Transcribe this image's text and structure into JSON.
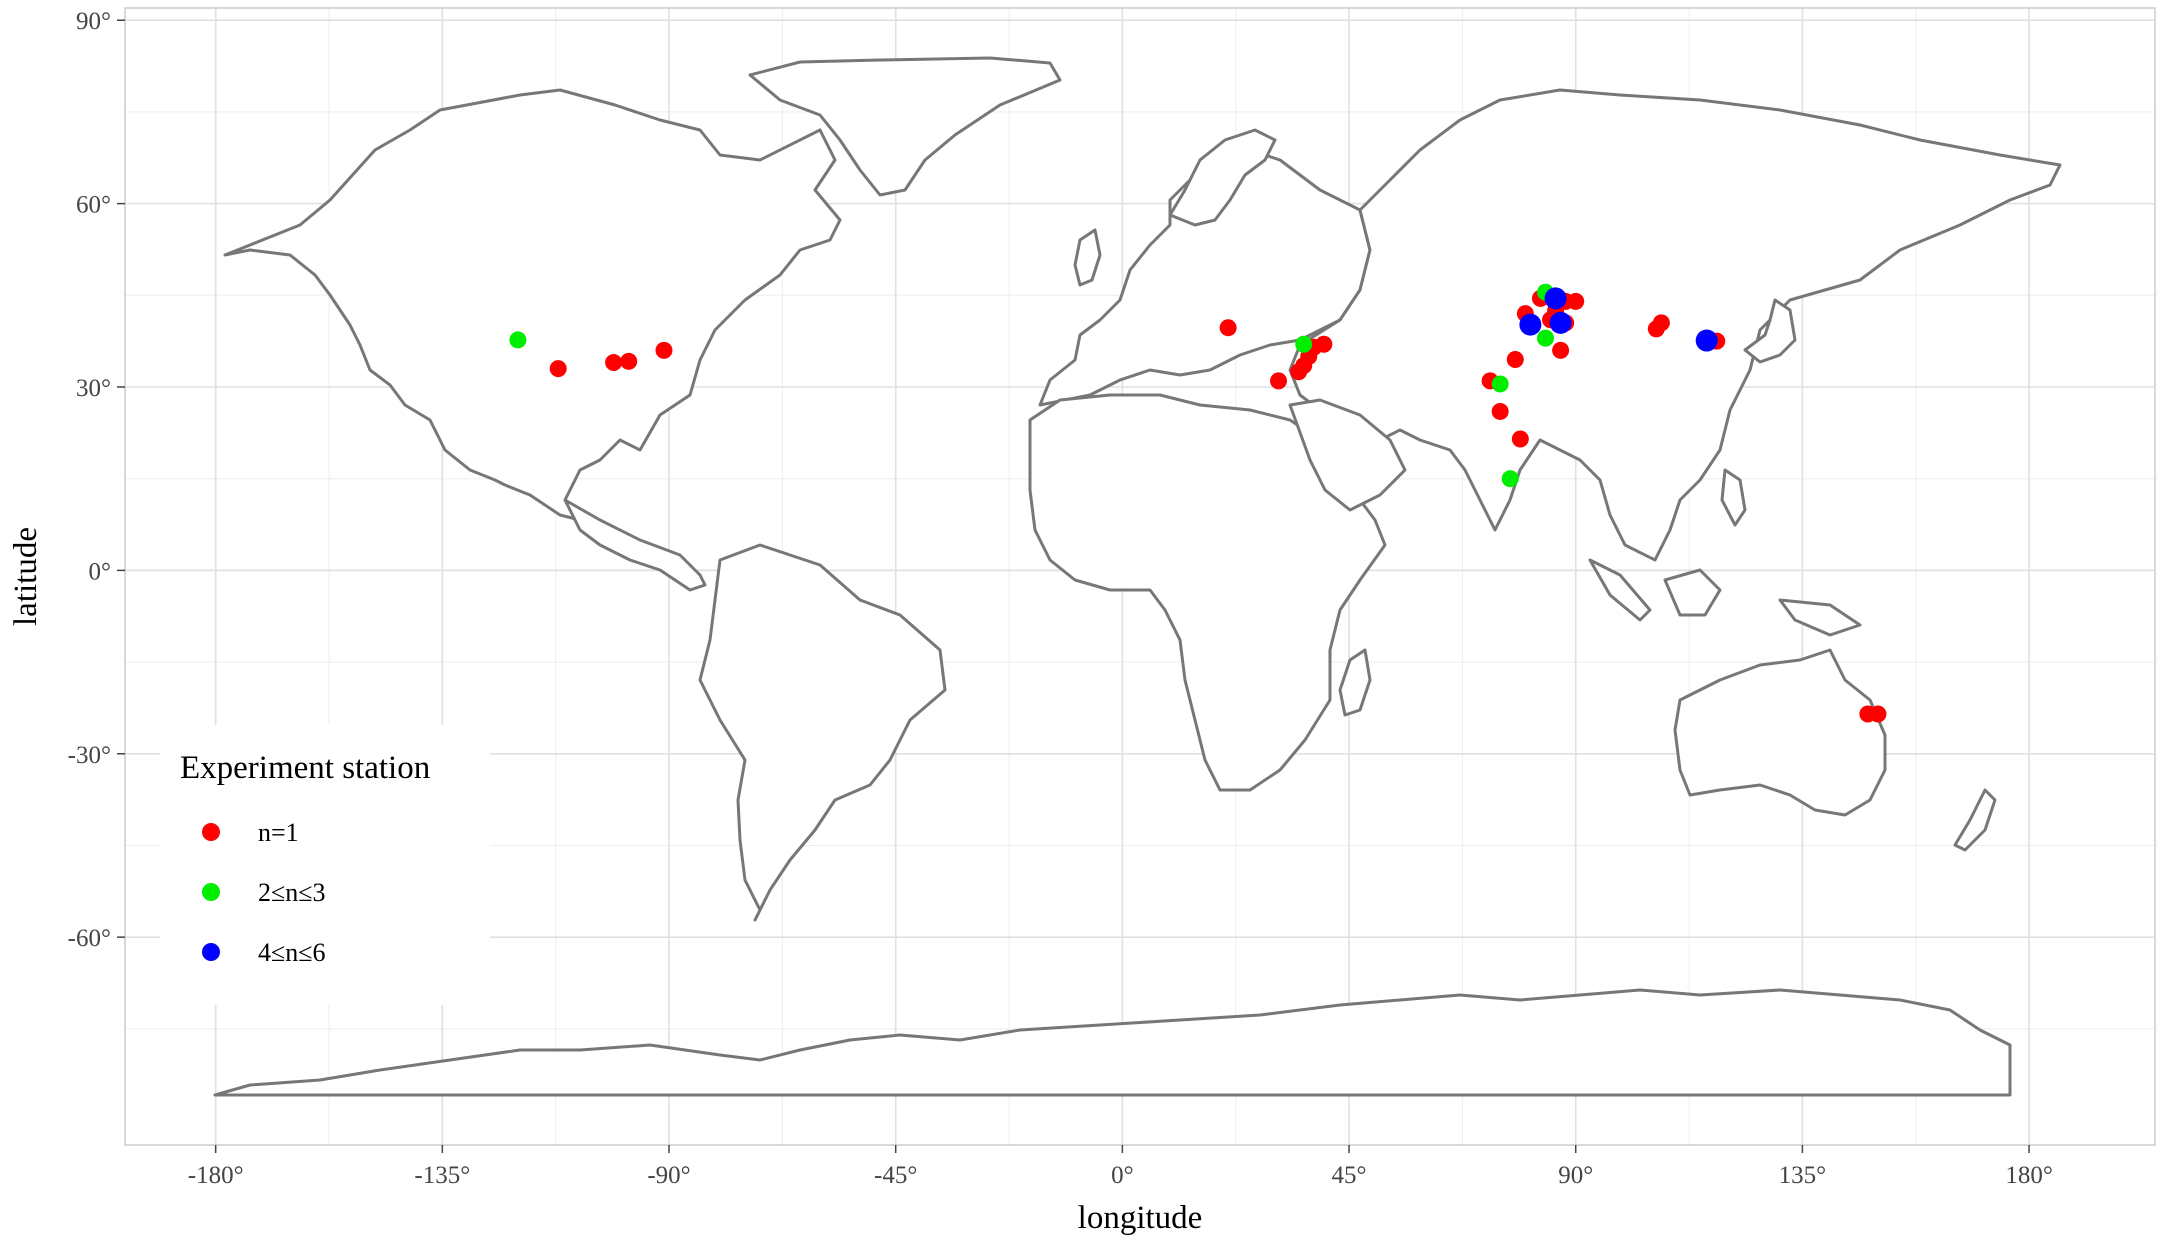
{
  "chart_data": {
    "type": "scatter",
    "xlabel": "longitude",
    "ylabel": "latitude",
    "xlim": [
      -198,
      205
    ],
    "ylim": [
      -94,
      92
    ],
    "x_ticks": [
      -180,
      -135,
      -90,
      -45,
      0,
      45,
      90,
      135,
      180
    ],
    "y_ticks": [
      -60,
      -30,
      0,
      30,
      60,
      90
    ],
    "x_tick_labels": [
      "-180°",
      "-135°",
      "-90°",
      "-45°",
      "0°",
      "45°",
      "90°",
      "135°",
      "180°"
    ],
    "y_tick_labels": [
      "-60°",
      "-30°",
      "0°",
      "30°",
      "60°",
      "90°"
    ],
    "grid": true,
    "legend": {
      "title": "Experiment station",
      "position": "bottom-left",
      "entries": [
        {
          "label": "n=1",
          "color": "#ff0000"
        },
        {
          "label": "2≤n≤3",
          "color": "#00ee00"
        },
        {
          "label": "4≤n≤6",
          "color": "#0000ff"
        }
      ]
    },
    "series": [
      {
        "name": "n=1",
        "color": "#ff0000",
        "points": [
          [
            -112,
            33
          ],
          [
            -101,
            34
          ],
          [
            -98,
            34.2
          ],
          [
            -91,
            36
          ],
          [
            21,
            39.7
          ],
          [
            31,
            31
          ],
          [
            35,
            32.5
          ],
          [
            36,
            33.5
          ],
          [
            37,
            35
          ],
          [
            38,
            36.5
          ],
          [
            40,
            37
          ],
          [
            73,
            31
          ],
          [
            75,
            26
          ],
          [
            78,
            34.5
          ],
          [
            79,
            21.5
          ],
          [
            80,
            42
          ],
          [
            83,
            44.5
          ],
          [
            85,
            41
          ],
          [
            86,
            42.5
          ],
          [
            87,
            36
          ],
          [
            88,
            40.5
          ],
          [
            88,
            44
          ],
          [
            90,
            44
          ],
          [
            106,
            39.5
          ],
          [
            107,
            40.5
          ],
          [
            116,
            37.8
          ],
          [
            118,
            37.5
          ],
          [
            148,
            -23.5
          ],
          [
            150,
            -23.5
          ]
        ]
      },
      {
        "name": "2≤n≤3",
        "color": "#00ee00",
        "points": [
          [
            -120,
            37.7
          ],
          [
            36,
            37
          ],
          [
            75,
            30.5
          ],
          [
            77,
            15
          ],
          [
            84,
            38
          ],
          [
            84,
            45.5
          ]
        ]
      },
      {
        "name": "4≤n≤6",
        "color": "#0000ff",
        "points": [
          [
            81,
            40.2
          ],
          [
            86,
            44.5
          ],
          [
            87,
            40.5
          ],
          [
            116,
            37.6
          ]
        ]
      }
    ]
  }
}
